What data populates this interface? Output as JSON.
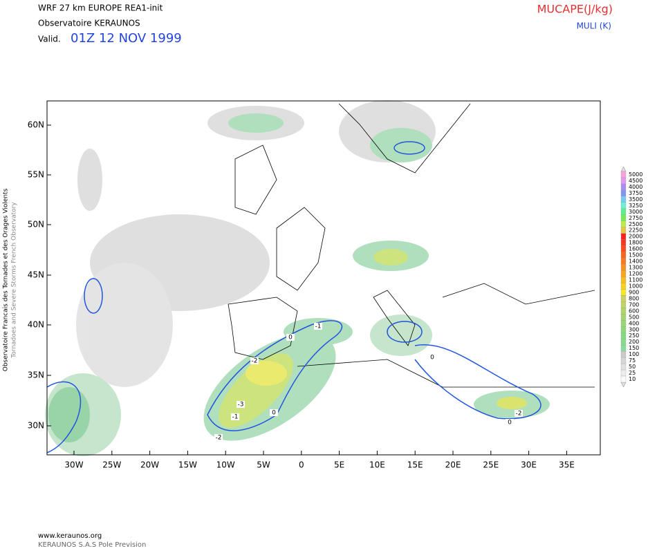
{
  "header": {
    "model": "WRF 27 km EUROPE   REA1-init",
    "source": "Observatoire KERAUNOS",
    "valid_label": "Valid.",
    "valid_time": "01Z 12 NOV 1999"
  },
  "legend": {
    "shaded": "MUCAPE(J/kg)",
    "contour": "MULI (K)"
  },
  "side": {
    "french": "Observatoire Francais des Tornades et des Orages Violents",
    "english": "Tornadoes and Severe Storms French Observatory"
  },
  "map": {
    "lat_labels": [
      "60N",
      "55N",
      "50N",
      "45N",
      "40N",
      "35N",
      "30N"
    ],
    "lon_labels": [
      "30W",
      "25W",
      "20W",
      "15W",
      "10W",
      "5W",
      "0",
      "5E",
      "10E",
      "15E",
      "20E",
      "25E",
      "30E",
      "35E"
    ],
    "contour_labels": [
      "-1",
      "0",
      "-2",
      "-3",
      "-1",
      "0",
      "-2",
      "0",
      "-2",
      "0"
    ]
  },
  "colorbar": {
    "labels": [
      "5000",
      "4500",
      "4000",
      "3750",
      "3500",
      "3250",
      "3000",
      "2750",
      "2500",
      "2250",
      "2000",
      "1800",
      "1600",
      "1500",
      "1400",
      "1300",
      "1200",
      "1100",
      "1000",
      "900",
      "800",
      "700",
      "600",
      "500",
      "400",
      "300",
      "250",
      "200",
      "150",
      "100",
      "75",
      "50",
      "25",
      "10"
    ]
  },
  "footer": {
    "site": "www.keraunos.org",
    "company": "KERAUNOS S.A.S Pole Prevision"
  }
}
